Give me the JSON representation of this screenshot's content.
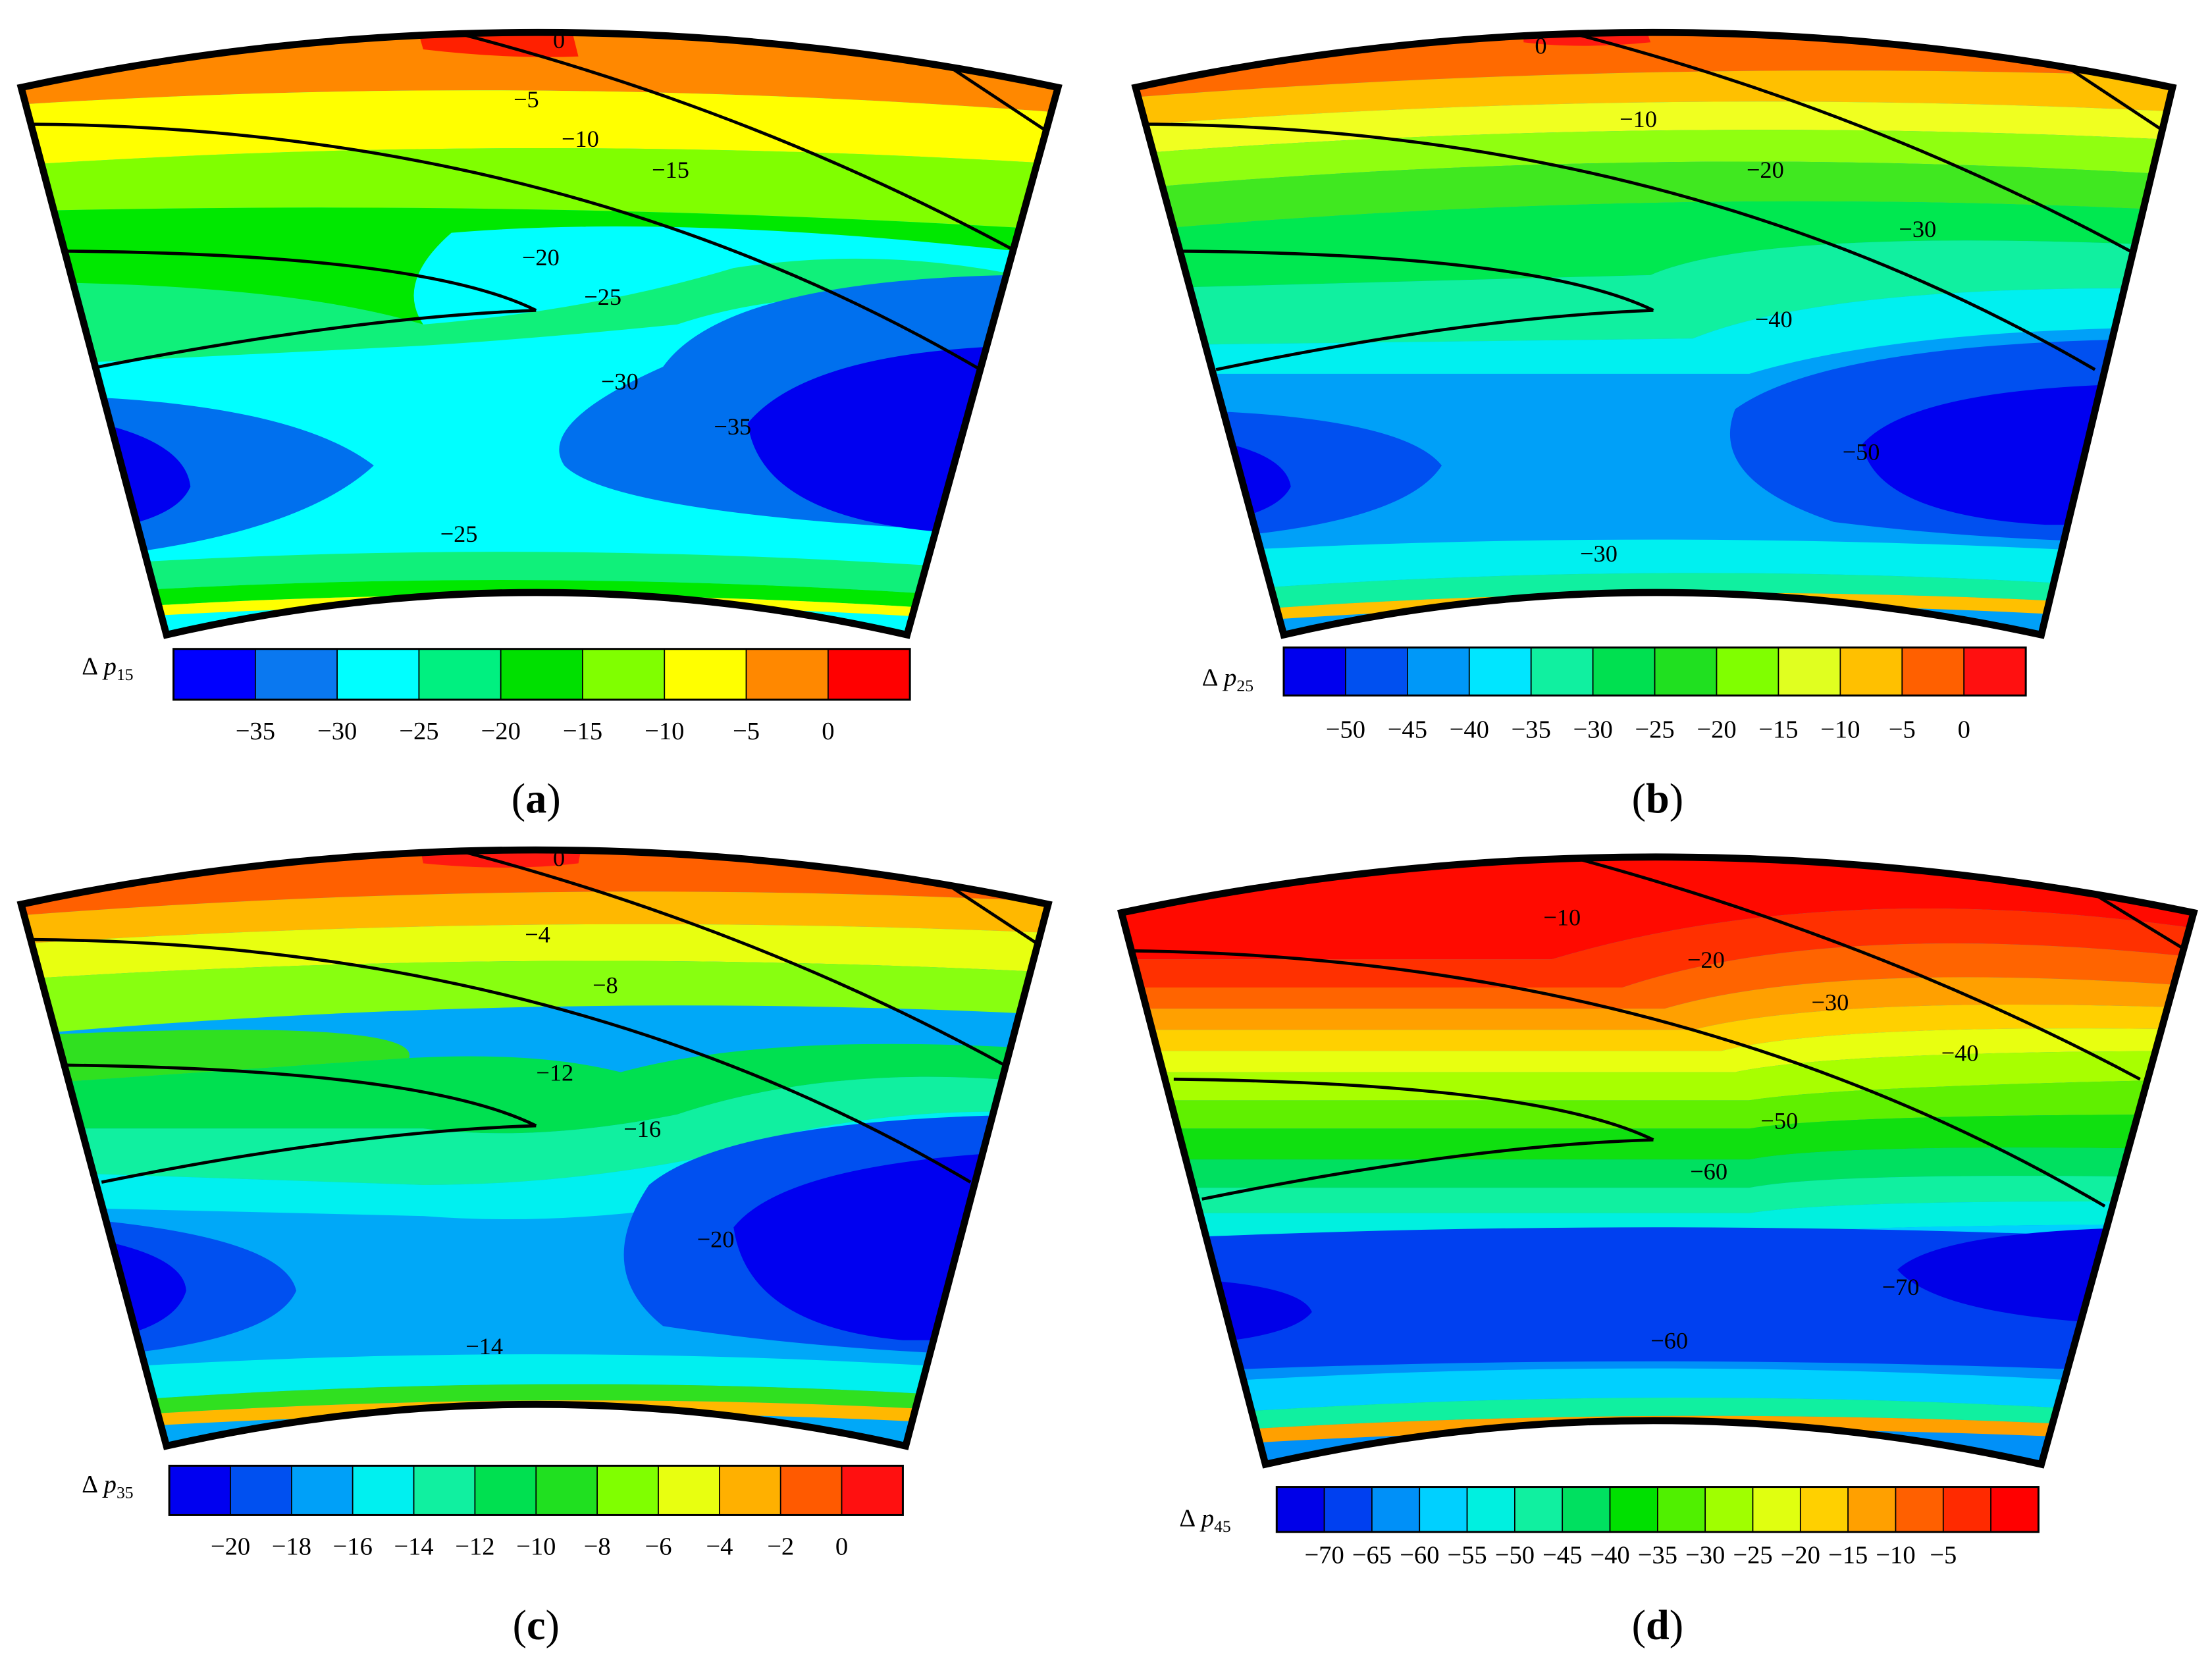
{
  "panels": [
    {
      "id": "a",
      "caption": "(a)",
      "caption_letter": "a",
      "legend_symbol": "Δ",
      "legend_var": "p",
      "legend_sub": "15",
      "colors": [
        "#0000ff",
        "#0a78f0",
        "#00ffff",
        "#00f080",
        "#00e000",
        "#80ff00",
        "#ffff00",
        "#ff8800",
        "#ff0000"
      ],
      "band_colors": [
        "#0000f0",
        "#0070ee",
        "#00ffff",
        "#10f07a",
        "#00e800",
        "#88ff00",
        "#ffff00",
        "#ff8800",
        "#ff2000"
      ],
      "tick_labels": [
        "−35",
        "−30",
        "−25",
        "−20",
        "−15",
        "−10",
        "−5",
        "0"
      ],
      "contour_labels": [
        {
          "text": "0"
        },
        {
          "text": "−5"
        },
        {
          "text": "−10"
        },
        {
          "text": "−15"
        },
        {
          "text": "−20"
        },
        {
          "text": "−25"
        },
        {
          "text": "−30"
        },
        {
          "text": "−35"
        },
        {
          "text": "−25"
        }
      ]
    },
    {
      "id": "b",
      "caption": "(b)",
      "caption_letter": "b",
      "legend_symbol": "Δ",
      "legend_var": "p",
      "legend_sub": "25",
      "colors": [
        "#0000ee",
        "#0050f0",
        "#0098f8",
        "#00e6ff",
        "#10f0a0",
        "#00e050",
        "#20e020",
        "#80ff00",
        "#e0ff20",
        "#ffc000",
        "#ff6000",
        "#ff1010"
      ],
      "band_colors": [
        "#0000f0",
        "#0050f0",
        "#00a0f8",
        "#00f0f0",
        "#10f0a0",
        "#00e850",
        "#40e820",
        "#90ff10",
        "#f0ff20",
        "#ffc000",
        "#ff6a00",
        "#ff1a10"
      ],
      "tick_labels": [
        "−50",
        "−45",
        "−40",
        "−35",
        "−30",
        "−25",
        "−20",
        "−15",
        "−10",
        "−5",
        "0"
      ],
      "contour_labels": [
        {
          "text": "0"
        },
        {
          "text": "−10"
        },
        {
          "text": "−20"
        },
        {
          "text": "−30"
        },
        {
          "text": "−40"
        },
        {
          "text": "−50"
        },
        {
          "text": "−30"
        }
      ]
    },
    {
      "id": "c",
      "caption": "(c)",
      "caption_letter": "c",
      "legend_symbol": "Δ",
      "legend_var": "p",
      "legend_sub": "35",
      "colors": [
        "#0000f0",
        "#0050f0",
        "#00a0f8",
        "#00f0f0",
        "#10f0a0",
        "#00e050",
        "#20e020",
        "#80ff00",
        "#e8ff10",
        "#ffb000",
        "#ff5a00",
        "#ff1010"
      ],
      "band_colors": [
        "#0000f0",
        "#0050f0",
        "#00a8f8",
        "#00f0f0",
        "#10f0a0",
        "#00e050",
        "#30e020",
        "#88ff10",
        "#e8ff10",
        "#ffb800",
        "#ff6000",
        "#ff1a10"
      ],
      "tick_labels": [
        "−20",
        "−18",
        "−16",
        "−14",
        "−12",
        "−10",
        "−8",
        "−6",
        "−4",
        "−2",
        "0"
      ],
      "contour_labels": [
        {
          "text": "0"
        },
        {
          "text": "−4"
        },
        {
          "text": "−8"
        },
        {
          "text": "−12"
        },
        {
          "text": "−16"
        },
        {
          "text": "−20"
        },
        {
          "text": "−14"
        }
      ]
    },
    {
      "id": "d",
      "caption": "(d)",
      "caption_letter": "d",
      "legend_symbol": "Δ",
      "legend_var": "p",
      "legend_sub": "45",
      "colors": [
        "#0000e8",
        "#0040f0",
        "#0090f8",
        "#00d0ff",
        "#00f0e0",
        "#10f0a0",
        "#00e060",
        "#00e000",
        "#50f000",
        "#a0ff00",
        "#e0ff10",
        "#ffd000",
        "#ffa000",
        "#ff6000",
        "#ff2a00",
        "#ff0000"
      ],
      "band_colors": [
        "#0000e8",
        "#0040f0",
        "#0090f8",
        "#00d0ff",
        "#00f0e0",
        "#10f0a0",
        "#00e060",
        "#10e010",
        "#60f000",
        "#a8ff00",
        "#e8ff10",
        "#ffd000",
        "#ffa000",
        "#ff6400",
        "#ff3000",
        "#ff0a00"
      ],
      "tick_labels": [
        "−70",
        "−65",
        "−60",
        "−55",
        "−50",
        "−45",
        "−40",
        "−35",
        "−30",
        "−25",
        "−20",
        "−15",
        "−10",
        "−5"
      ],
      "contour_labels": [
        {
          "text": "−10"
        },
        {
          "text": "−20"
        },
        {
          "text": "−30"
        },
        {
          "text": "−40"
        },
        {
          "text": "−50"
        },
        {
          "text": "−60"
        },
        {
          "text": "−70"
        },
        {
          "text": "−60"
        }
      ]
    }
  ],
  "chart_data": [
    {
      "type": "heatmap",
      "title": "",
      "variable": "Δp15",
      "colorbar_ticks": [
        -35,
        -30,
        -25,
        -20,
        -15,
        -10,
        -5,
        0
      ],
      "colorbar_range": [
        -38,
        2
      ],
      "contour_labels": [
        0,
        -5,
        -10,
        -15,
        -20,
        -25,
        -30,
        -35,
        -25
      ],
      "extrema": {
        "min_region": "two low-pressure cores (−35) mid-span, strongest near right side",
        "max_region": "0 at top shroud near blade tip"
      }
    },
    {
      "type": "heatmap",
      "title": "",
      "variable": "Δp25",
      "colorbar_ticks": [
        -50,
        -45,
        -40,
        -35,
        -30,
        -25,
        -20,
        -15,
        -10,
        -5,
        0
      ],
      "colorbar_range": [
        -52,
        2
      ],
      "contour_labels": [
        0,
        -10,
        -20,
        -30,
        -40,
        -50,
        -30
      ]
    },
    {
      "type": "heatmap",
      "title": "",
      "variable": "Δp35",
      "colorbar_ticks": [
        -20,
        -18,
        -16,
        -14,
        -12,
        -10,
        -8,
        -6,
        -4,
        -2,
        0
      ],
      "colorbar_range": [
        -21,
        1
      ],
      "contour_labels": [
        0,
        -4,
        -8,
        -12,
        -16,
        -20,
        -14
      ]
    },
    {
      "type": "heatmap",
      "title": "",
      "variable": "Δp45",
      "colorbar_ticks": [
        -70,
        -65,
        -60,
        -55,
        -50,
        -45,
        -40,
        -35,
        -30,
        -25,
        -20,
        -15,
        -10,
        -5
      ],
      "colorbar_range": [
        -72,
        -3
      ],
      "contour_labels": [
        -10,
        -20,
        -30,
        -40,
        -50,
        -60,
        -70,
        -60
      ]
    }
  ]
}
